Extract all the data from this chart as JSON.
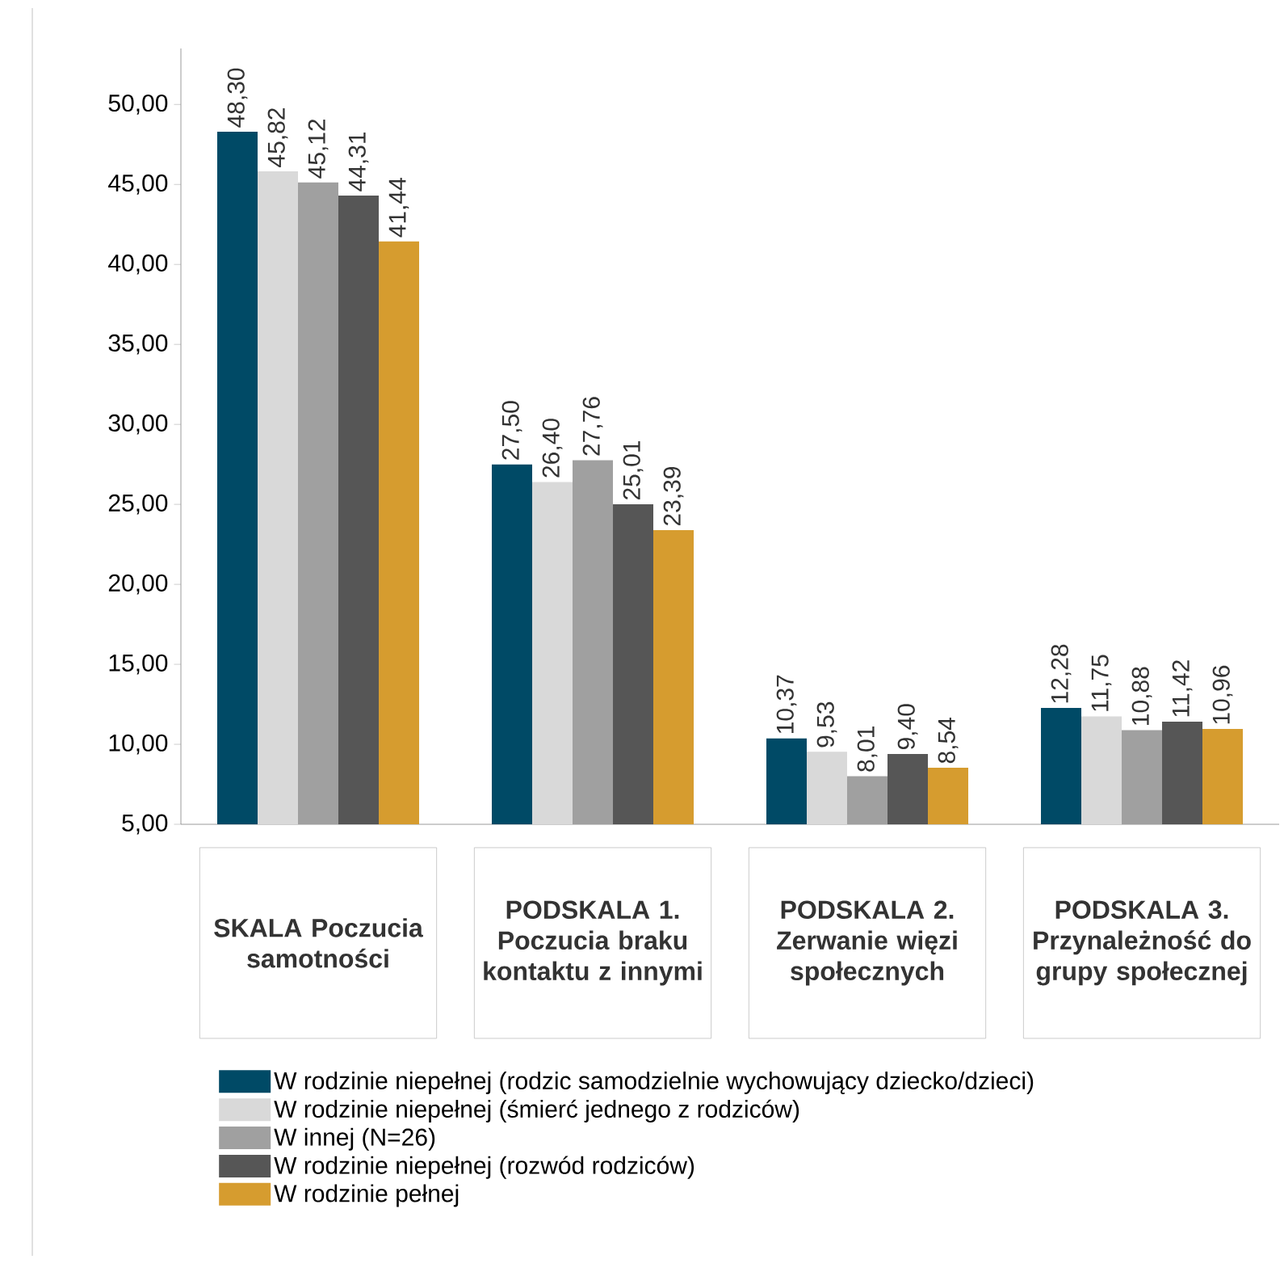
{
  "chart_data": {
    "type": "bar",
    "categories": [
      "SKALA Poczucia samotności",
      "PODSKALA 1. Poczucia braku kontaktu z innymi",
      "PODSKALA 2. Zerwanie więzi społecznych",
      "PODSKALA 3. Przynależność do grupy społecznej"
    ],
    "series": [
      {
        "name": "W rodzinie niepełnej (rodzic samodzielnie wychowujący dziecko/dzieci)",
        "color": "#004a66",
        "values": [
          48.3,
          27.5,
          10.37,
          12.28
        ],
        "value_labels": [
          "48,30",
          "27,50",
          "10,37",
          "12,28"
        ]
      },
      {
        "name": "W rodzinie niepełnej (śmierć jednego z rodziców)",
        "color": "#d9d9d9",
        "values": [
          45.82,
          26.4,
          9.53,
          11.75
        ],
        "value_labels": [
          "45,82",
          "26,40",
          "9,53",
          "11,75"
        ]
      },
      {
        "name": "W innej (N=26)",
        "color": "#a0a0a0",
        "values": [
          45.12,
          27.76,
          8.01,
          10.88
        ],
        "value_labels": [
          "45,12",
          "27,76",
          "8,01",
          "10,88"
        ]
      },
      {
        "name": "W rodzinie niepełnej (rozwód rodziców)",
        "color": "#565656",
        "values": [
          44.31,
          25.01,
          9.4,
          11.42
        ],
        "value_labels": [
          "44,31",
          "25,01",
          "9,40",
          "11,42"
        ]
      },
      {
        "name": "W rodzinie pełnej",
        "color": "#d69c2f",
        "values": [
          41.44,
          23.39,
          8.54,
          10.96
        ],
        "value_labels": [
          "41,44",
          "23,39",
          "8,54",
          "10,96"
        ]
      }
    ],
    "ylim": [
      5,
      53.5
    ],
    "yticks": [
      {
        "value": 5,
        "label": "5,00"
      },
      {
        "value": 10,
        "label": "10,00"
      },
      {
        "value": 15,
        "label": "15,00"
      },
      {
        "value": 20,
        "label": "20,00"
      },
      {
        "value": 25,
        "label": "25,00"
      },
      {
        "value": 30,
        "label": "30,00"
      },
      {
        "value": 35,
        "label": "35,00"
      },
      {
        "value": 40,
        "label": "40,00"
      },
      {
        "value": 45,
        "label": "45,00"
      },
      {
        "value": 50,
        "label": "50,00"
      }
    ],
    "grid": false,
    "legend": "bottom"
  }
}
